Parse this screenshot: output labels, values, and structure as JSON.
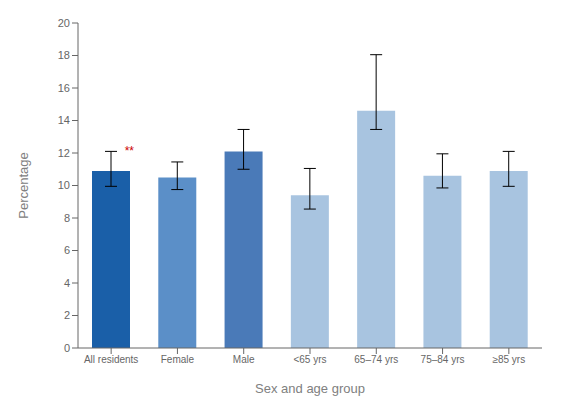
{
  "chart_data": {
    "type": "bar",
    "categories": [
      "All residents",
      "Female",
      "Male",
      "<65 yrs",
      "65–74 yrs",
      "75–84 yrs",
      "≥85 yrs"
    ],
    "values": [
      10.9,
      10.5,
      12.1,
      9.4,
      14.6,
      10.6,
      10.9
    ],
    "errors_upper": [
      1.2,
      0.95,
      1.35,
      1.65,
      3.45,
      1.35,
      1.2
    ],
    "errors_lower": [
      0.95,
      0.75,
      1.1,
      0.85,
      1.15,
      0.75,
      0.95
    ],
    "colors": [
      "#1a5fa8",
      "#5b8fc8",
      "#4a7ab8",
      "#a8c4e0",
      "#a8c4e0",
      "#a8c4e0",
      "#a8c4e0"
    ],
    "xlabel": "Sex and age group",
    "ylabel": "Percentage",
    "ylim": [
      0,
      20
    ],
    "yticks": [
      0,
      2,
      4,
      6,
      8,
      10,
      12,
      14,
      16,
      18,
      20
    ],
    "grid": false,
    "annotations": [
      {
        "text": "**",
        "category": "All residents",
        "color": "#cc0000"
      }
    ]
  }
}
